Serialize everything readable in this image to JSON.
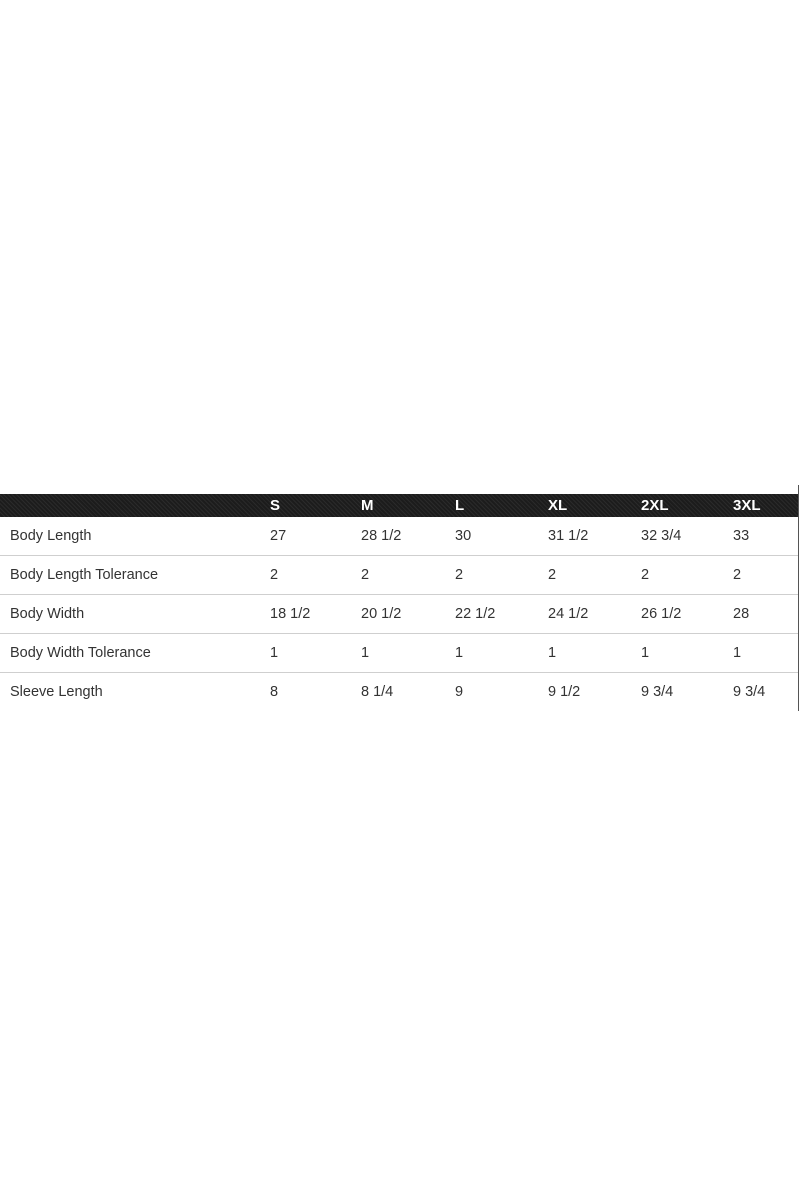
{
  "table": {
    "columns": [
      "",
      "S",
      "M",
      "L",
      "XL",
      "2XL",
      "3XL"
    ],
    "rows": [
      {
        "label": "Body Length",
        "values": [
          "27",
          "28 1/2",
          "30",
          "31 1/2",
          "32 3/4",
          "33"
        ]
      },
      {
        "label": "Body Length Tolerance",
        "values": [
          "2",
          "2",
          "2",
          "2",
          "2",
          "2"
        ]
      },
      {
        "label": "Body Width",
        "values": [
          "18 1/2",
          "20 1/2",
          "22 1/2",
          "24 1/2",
          "26 1/2",
          "28"
        ]
      },
      {
        "label": "Body Width Tolerance",
        "values": [
          "1",
          "1",
          "1",
          "1",
          "1",
          "1"
        ]
      },
      {
        "label": "Sleeve Length",
        "values": [
          "8",
          "8 1/4",
          "9",
          "9 1/2",
          "9 3/4",
          "9 3/4"
        ]
      }
    ]
  }
}
